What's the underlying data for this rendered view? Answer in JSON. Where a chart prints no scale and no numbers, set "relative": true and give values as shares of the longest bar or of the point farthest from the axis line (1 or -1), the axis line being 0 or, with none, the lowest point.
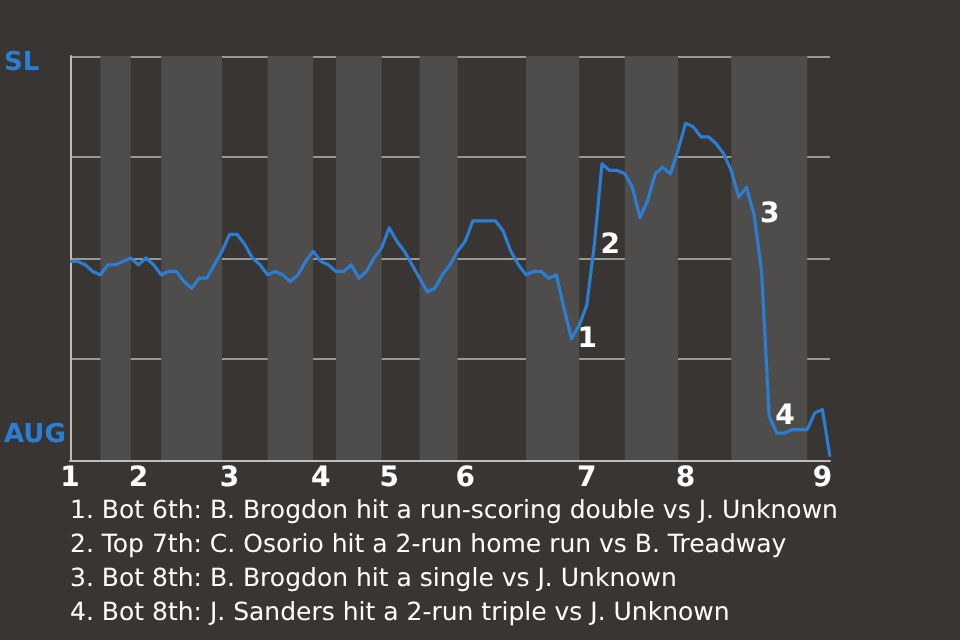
{
  "chart_data": {
    "type": "line",
    "relative": true,
    "categories": [
      "1",
      null,
      null,
      null,
      null,
      null,
      null,
      null,
      null,
      "2",
      null,
      null,
      null,
      null,
      null,
      null,
      null,
      null,
      null,
      null,
      null,
      "3",
      null,
      null,
      null,
      null,
      null,
      null,
      null,
      null,
      null,
      null,
      null,
      "4",
      null,
      null,
      null,
      null,
      null,
      null,
      null,
      null,
      "5",
      null,
      null,
      null,
      null,
      null,
      null,
      null,
      null,
      null,
      "6",
      null,
      null,
      null,
      null,
      null,
      null,
      null,
      null,
      null,
      null,
      null,
      null,
      null,
      null,
      null,
      "7",
      null,
      null,
      null,
      null,
      null,
      null,
      null,
      null,
      null,
      null,
      null,
      null,
      "8",
      null,
      null,
      null,
      null,
      null,
      null,
      null,
      null,
      null,
      null,
      null,
      null,
      null,
      null,
      null,
      null,
      null,
      "9",
      null
    ],
    "grid": "y",
    "marker": "none",
    "line_style": "solid",
    "series": [
      {
        "color": "#2a7fd4",
        "values": [
          0.59,
          0.59,
          0.58,
          0.56,
          0.55,
          0.58,
          0.58,
          0.59,
          0.6,
          0.58,
          0.6,
          0.58,
          0.55,
          0.56,
          0.56,
          0.53,
          0.51,
          0.54,
          0.54,
          0.58,
          0.62,
          0.67,
          0.67,
          0.64,
          0.6,
          0.58,
          0.55,
          0.56,
          0.55,
          0.53,
          0.55,
          0.59,
          0.62,
          0.59,
          0.58,
          0.56,
          0.56,
          0.58,
          0.54,
          0.56,
          0.6,
          0.63,
          0.69,
          0.65,
          0.62,
          0.58,
          0.54,
          0.5,
          0.51,
          0.55,
          0.58,
          0.62,
          0.65,
          0.71,
          0.71,
          0.71,
          0.71,
          0.68,
          0.62,
          0.58,
          0.55,
          0.56,
          0.56,
          0.54,
          0.55,
          0.45,
          0.36,
          0.4,
          0.46,
          0.64,
          0.88,
          0.86,
          0.86,
          0.85,
          0.81,
          0.72,
          0.77,
          0.85,
          0.87,
          0.85,
          0.92,
          1,
          0.99,
          0.96,
          0.96,
          0.94,
          0.91,
          0.86,
          0.78,
          0.81,
          0.73,
          0.56,
          0.13,
          0.08,
          0.08,
          0.09,
          0.09,
          0.09,
          0.14,
          0.15,
          0.01
        ],
        "name": null
      }
    ],
    "annotations": [
      "SL",
      "AUG",
      "1",
      "2",
      "3",
      "4",
      "1. Bot 6th: B. Brogdon hit a run-scoring double vs J. Unknown",
      "2. Top 7th: C. Osorio hit a 2-run home run vs B. Treadway",
      "3. Bot 8th: B. Brogdon hit a single vs J. Unknown",
      "4. Bot 8th: J. Sanders hit a 2-run triple vs J. Unknown"
    ]
  }
}
